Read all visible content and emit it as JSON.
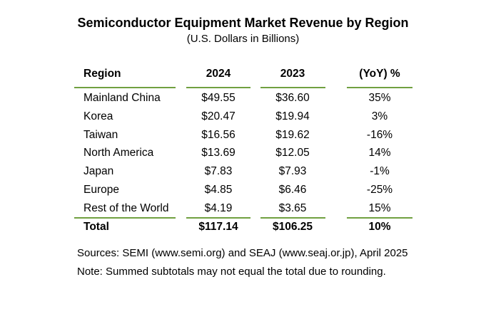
{
  "title": "Semiconductor Equipment Market Revenue by Region",
  "subtitle": "(U.S. Dollars in Billions)",
  "table": {
    "headers": [
      "Region",
      "2024",
      "2023",
      "(YoY) %"
    ],
    "rows": [
      [
        "Mainland China",
        "$49.55",
        "$36.60",
        "35%"
      ],
      [
        "Korea",
        "$20.47",
        "$19.94",
        "3%"
      ],
      [
        "Taiwan",
        "$16.56",
        "$19.62",
        "-16%"
      ],
      [
        "North America",
        "$13.69",
        "$12.05",
        "14%"
      ],
      [
        "Japan",
        "$7.83",
        "$7.93",
        "-1%"
      ],
      [
        "Europe",
        "$4.85",
        "$6.46",
        "-25%"
      ],
      [
        "Rest of the World",
        "$4.19",
        "$3.65",
        "15%"
      ]
    ],
    "total": [
      "Total",
      "$117.14",
      "$106.25",
      "10%"
    ]
  },
  "sources": "Sources: SEMI (www.semi.org) and SEAJ (www.seaj.or.jp), April 2025",
  "note": "Note: Summed subtotals may not equal the total due to rounding.",
  "colors": {
    "rule": "#70a040"
  }
}
